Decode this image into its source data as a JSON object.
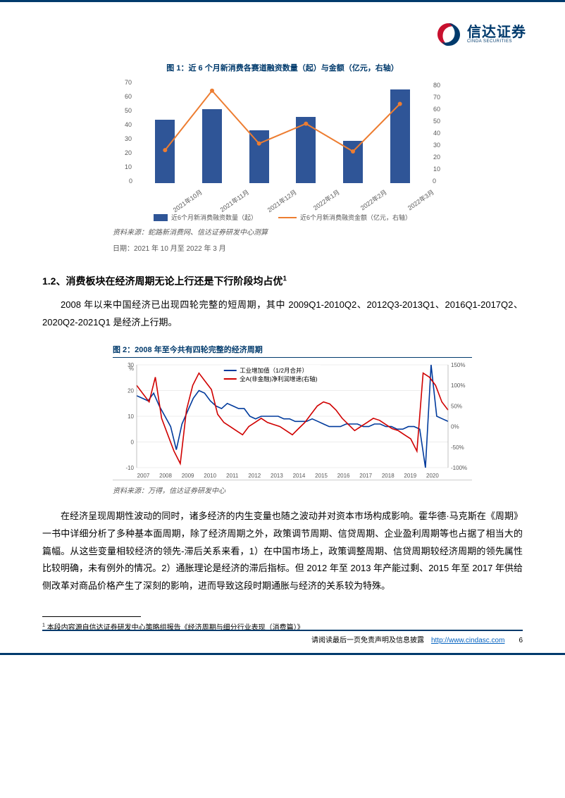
{
  "logo": {
    "cn": "信达证券",
    "en": "CINDA SECURITIES"
  },
  "fig1": {
    "title": "图 1：近 6 个月新消费各赛道融资数量（起）与金额（亿元，右轴）",
    "type": "bar+line",
    "categories": [
      "2021年10月",
      "2021年11月",
      "2021年12月",
      "2022年1月",
      "2022年2月",
      "2022年3月"
    ],
    "bars": [
      42,
      49,
      35,
      44,
      28,
      62
    ],
    "line": [
      25,
      70,
      30,
      45,
      24,
      60
    ],
    "bar_color": "#2f5597",
    "line_color": "#ed7d31",
    "y_left": {
      "min": 0,
      "max": 70,
      "step": 10
    },
    "y_right": {
      "min": 0,
      "max": 80,
      "step": 10
    },
    "legend_bar": "近6个月新消费融资数量（起）",
    "legend_line": "近6个月新消费融资金额（亿元，右轴）",
    "source": "资料来源：蛇路新消费网、信达证券研发中心测算",
    "date_note": "日期：2021 年 10 月至 2022 年 3 月"
  },
  "section": {
    "heading": "1.2、消费板块在经济周期无论上行还是下行阶段均占优",
    "heading_sup": "1",
    "para1": "2008 年以来中国经济已出现四轮完整的短周期，其中 2009Q1-2010Q2、2012Q3-2013Q1、2016Q1-2017Q2、2020Q2-2021Q1 是经济上行期。"
  },
  "fig2": {
    "title": "图 2：2008 年至今共有四轮完整的经济周期",
    "type": "line",
    "legend_blue": "工业增加值（1/2月合并）",
    "legend_red": "全A(非金融)净利润增速(右轴)",
    "blue_color": "#003a9c",
    "red_color": "#d00000",
    "y_left": {
      "min": -10,
      "max": 30,
      "step": 10,
      "unit": "%"
    },
    "y_right": {
      "min": -100,
      "max": 150,
      "step": 50,
      "unit": "%"
    },
    "x_years": [
      "2007",
      "2008",
      "2009",
      "2010",
      "2011",
      "2012",
      "2013",
      "2014",
      "2015",
      "2016",
      "2017",
      "2018",
      "2019",
      "2020"
    ],
    "source": "资料来源：万得，信达证券研发中心"
  },
  "para2": "在经济呈现周期性波动的同时，诸多经济的内生变量也随之波动并对资本市场构成影响。霍华德·马克斯在《周期》一书中详细分析了多种基本面周期，除了经济周期之外，政策调节周期、信贷周期、企业盈利周期等也占据了相当大的篇幅。从这些变量相较经济的领先-滞后关系来看，1）在中国市场上，政策调整周期、信贷周期较经济周期的领先属性比较明确，未有例外的情况。2）通胀理论是经济的滞后指标。但 2012 年至 2013 年产能过剩、2015 年至 2017 年供给侧改革对商品价格产生了深刻的影响，进而导致这段时期通胀与经济的关系较为特殊。",
  "footnote": "本段内容源自信达证券研发中心策略组报告《经济周期与细分行业表现（消费篇）》",
  "footnote_num": "1",
  "footer": {
    "disclaim": "请阅读最后一页免责声明及信息披露",
    "url_text": "http://www.cindasc.com",
    "page": "6"
  }
}
